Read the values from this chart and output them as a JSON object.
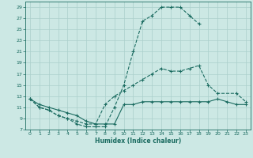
{
  "title": "",
  "xlabel": "Humidex (Indice chaleur)",
  "bg_color": "#cce8e4",
  "grid_color": "#aacfcb",
  "line_color": "#1a6b60",
  "xlim": [
    -0.5,
    23.5
  ],
  "ylim": [
    7,
    30
  ],
  "xticks": [
    0,
    1,
    2,
    3,
    4,
    5,
    6,
    7,
    8,
    9,
    10,
    11,
    12,
    13,
    14,
    15,
    16,
    17,
    18,
    19,
    20,
    21,
    22,
    23
  ],
  "yticks": [
    7,
    9,
    11,
    13,
    15,
    17,
    19,
    21,
    23,
    25,
    27,
    29
  ],
  "curve1_x": [
    0,
    1,
    2,
    3,
    4,
    5,
    6,
    7,
    8,
    9,
    10,
    11,
    12,
    13,
    14,
    15,
    16,
    17,
    18
  ],
  "curve1_y": [
    12.5,
    11.0,
    10.5,
    9.5,
    9.0,
    8.0,
    7.5,
    7.5,
    7.5,
    11.0,
    15.0,
    21.0,
    26.5,
    27.5,
    29.0,
    29.0,
    29.0,
    27.5,
    26.0
  ],
  "curve2_x": [
    0,
    1,
    2,
    3,
    4,
    5,
    6,
    7,
    8,
    9,
    10,
    11,
    12,
    13,
    14,
    15,
    16,
    17,
    18,
    19,
    20,
    22,
    23
  ],
  "curve2_y": [
    12.5,
    11.0,
    10.5,
    9.5,
    9.0,
    8.5,
    8.0,
    8.0,
    11.5,
    13.0,
    14.0,
    15.0,
    16.0,
    17.0,
    18.0,
    17.5,
    17.5,
    18.0,
    18.5,
    15.0,
    13.5,
    13.5,
    12.0
  ],
  "curve3_x": [
    0,
    1,
    2,
    3,
    4,
    5,
    6,
    7,
    8,
    9,
    10,
    11,
    12,
    13,
    14,
    15,
    16,
    17,
    18,
    19,
    20,
    21,
    22,
    23
  ],
  "curve3_y": [
    12.5,
    11.5,
    11.0,
    10.5,
    10.0,
    9.5,
    8.5,
    8.0,
    8.0,
    8.0,
    11.5,
    11.5,
    12.0,
    12.0,
    12.0,
    12.0,
    12.0,
    12.0,
    12.0,
    12.0,
    12.5,
    12.0,
    11.5,
    11.5
  ]
}
